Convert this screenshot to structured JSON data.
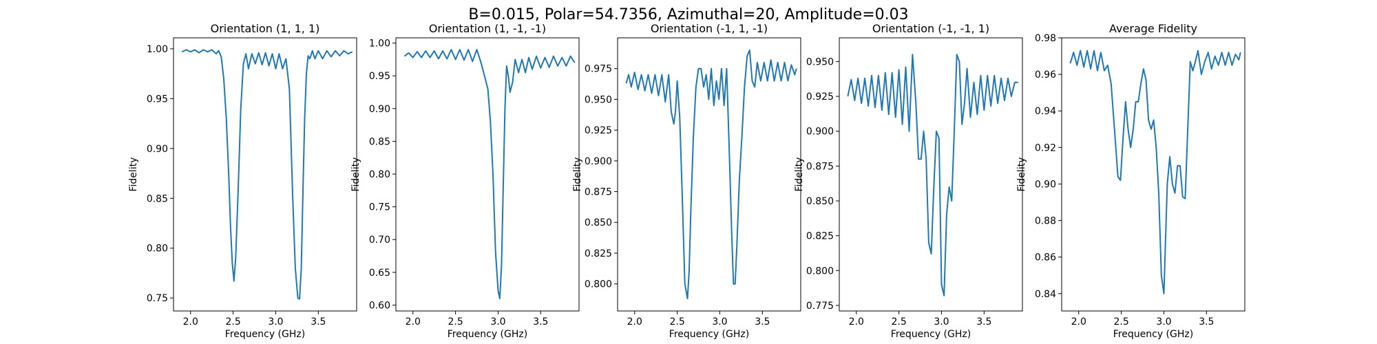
{
  "figure": {
    "suptitle": "B=0.015, Polar=54.7356, Azimuthal=20, Amplitude=0.03"
  },
  "chart_data": [
    {
      "type": "line",
      "title": "Orientation (1, 1, 1)",
      "xlabel": "Frequency (GHz)",
      "ylabel": "Fidelity",
      "xlim": [
        1.8,
        3.95
      ],
      "ylim": [
        0.737,
        1.011
      ],
      "xticks": [
        2.0,
        2.5,
        3.0,
        3.5
      ],
      "xtick_labels": [
        "2.0",
        "2.5",
        "3.0",
        "3.5"
      ],
      "yticks": [
        0.75,
        0.8,
        0.85,
        0.9,
        0.95,
        1.0
      ],
      "ytick_labels": [
        "0.75",
        "0.80",
        "0.85",
        "0.90",
        "0.95",
        "1.00"
      ],
      "color": "#1f77b4",
      "series": [
        {
          "x": [
            1.9,
            1.95,
            2.0,
            2.05,
            2.1,
            2.15,
            2.2,
            2.25,
            2.3,
            2.33,
            2.36,
            2.39,
            2.42,
            2.45,
            2.47,
            2.49,
            2.51,
            2.53,
            2.56,
            2.59,
            2.62,
            2.65,
            2.68,
            2.72,
            2.76,
            2.8,
            2.84,
            2.88,
            2.92,
            2.96,
            3.0,
            3.04,
            3.08,
            3.12,
            3.16,
            3.2,
            3.23,
            3.26,
            3.28,
            3.3,
            3.32,
            3.34,
            3.36,
            3.38,
            3.4,
            3.43,
            3.46,
            3.5,
            3.55,
            3.6,
            3.65,
            3.7,
            3.75,
            3.8,
            3.85,
            3.9
          ],
          "y": [
            0.997,
            0.999,
            0.997,
            0.999,
            0.996,
            0.999,
            0.997,
            0.999,
            0.995,
            0.998,
            0.992,
            0.97,
            0.93,
            0.87,
            0.82,
            0.785,
            0.767,
            0.79,
            0.86,
            0.94,
            0.985,
            0.995,
            0.98,
            0.995,
            0.985,
            0.996,
            0.984,
            0.996,
            0.983,
            0.995,
            0.98,
            0.995,
            0.98,
            0.99,
            0.96,
            0.85,
            0.78,
            0.75,
            0.749,
            0.78,
            0.86,
            0.93,
            0.975,
            0.993,
            0.99,
            0.998,
            0.99,
            0.998,
            0.99,
            0.998,
            0.992,
            0.998,
            0.993,
            0.998,
            0.995,
            0.997
          ]
        }
      ]
    },
    {
      "type": "line",
      "title": "Orientation (1, -1, -1)",
      "xlabel": "Frequency (GHz)",
      "ylabel": "Fidelity",
      "xlim": [
        1.8,
        3.95
      ],
      "ylim": [
        0.591,
        1.008
      ],
      "xticks": [
        2.0,
        2.5,
        3.0,
        3.5
      ],
      "xtick_labels": [
        "2.0",
        "2.5",
        "3.0",
        "3.5"
      ],
      "yticks": [
        0.6,
        0.65,
        0.7,
        0.75,
        0.8,
        0.85,
        0.9,
        0.95,
        1.0
      ],
      "ytick_labels": [
        "0.60",
        "0.65",
        "0.70",
        "0.75",
        "0.80",
        "0.85",
        "0.90",
        "0.95",
        "1.00"
      ],
      "color": "#1f77b4",
      "series": [
        {
          "x": [
            1.9,
            1.95,
            2.0,
            2.05,
            2.1,
            2.15,
            2.2,
            2.25,
            2.3,
            2.35,
            2.4,
            2.45,
            2.5,
            2.55,
            2.6,
            2.65,
            2.7,
            2.75,
            2.8,
            2.84,
            2.88,
            2.91,
            2.94,
            2.97,
            3.0,
            3.02,
            3.04,
            3.06,
            3.08,
            3.1,
            3.12,
            3.14,
            3.17,
            3.2,
            3.24,
            3.28,
            3.32,
            3.36,
            3.4,
            3.45,
            3.5,
            3.55,
            3.6,
            3.65,
            3.7,
            3.75,
            3.8,
            3.85,
            3.9
          ],
          "y": [
            0.98,
            0.985,
            0.978,
            0.987,
            0.978,
            0.988,
            0.978,
            0.988,
            0.976,
            0.988,
            0.976,
            0.99,
            0.975,
            0.99,
            0.974,
            0.99,
            0.972,
            0.99,
            0.97,
            0.95,
            0.93,
            0.88,
            0.8,
            0.68,
            0.622,
            0.61,
            0.66,
            0.78,
            0.9,
            0.965,
            0.95,
            0.925,
            0.94,
            0.975,
            0.955,
            0.975,
            0.955,
            0.978,
            0.96,
            0.98,
            0.962,
            0.978,
            0.963,
            0.98,
            0.965,
            0.978,
            0.965,
            0.98,
            0.97
          ]
        }
      ]
    },
    {
      "type": "line",
      "title": "Orientation (-1, 1, -1)",
      "xlabel": "Frequency (GHz)",
      "ylabel": "Fidelity",
      "xlim": [
        1.8,
        3.95
      ],
      "ylim": [
        0.778,
        1.0
      ],
      "xticks": [
        2.0,
        2.5,
        3.0,
        3.5
      ],
      "xtick_labels": [
        "2.0",
        "2.5",
        "3.0",
        "3.5"
      ],
      "yticks": [
        0.8,
        0.825,
        0.85,
        0.875,
        0.9,
        0.925,
        0.95,
        0.975
      ],
      "ytick_labels": [
        "0.800",
        "0.825",
        "0.850",
        "0.875",
        "0.900",
        "0.925",
        "0.950",
        "0.975"
      ],
      "color": "#1f77b4",
      "series": [
        {
          "x": [
            1.9,
            1.93,
            1.96,
            2.0,
            2.04,
            2.08,
            2.12,
            2.16,
            2.2,
            2.24,
            2.28,
            2.32,
            2.36,
            2.4,
            2.43,
            2.46,
            2.48,
            2.5,
            2.53,
            2.56,
            2.59,
            2.62,
            2.64,
            2.66,
            2.69,
            2.72,
            2.75,
            2.78,
            2.81,
            2.84,
            2.87,
            2.9,
            2.93,
            2.96,
            2.99,
            3.02,
            3.05,
            3.08,
            3.11,
            3.14,
            3.16,
            3.18,
            3.2,
            3.23,
            3.26,
            3.29,
            3.32,
            3.35,
            3.38,
            3.41,
            3.44,
            3.48,
            3.52,
            3.56,
            3.6,
            3.64,
            3.68,
            3.72,
            3.76,
            3.8,
            3.84,
            3.88,
            3.9
          ],
          "y": [
            0.963,
            0.97,
            0.96,
            0.972,
            0.958,
            0.97,
            0.957,
            0.97,
            0.955,
            0.97,
            0.953,
            0.97,
            0.948,
            0.97,
            0.94,
            0.93,
            0.94,
            0.965,
            0.935,
            0.87,
            0.8,
            0.788,
            0.81,
            0.86,
            0.92,
            0.96,
            0.975,
            0.975,
            0.96,
            0.97,
            0.95,
            0.975,
            0.945,
            0.965,
            0.95,
            0.975,
            0.945,
            0.975,
            0.91,
            0.84,
            0.8,
            0.8,
            0.83,
            0.885,
            0.92,
            0.96,
            0.985,
            0.99,
            0.965,
            0.96,
            0.98,
            0.965,
            0.98,
            0.965,
            0.982,
            0.965,
            0.98,
            0.965,
            0.98,
            0.965,
            0.978,
            0.97,
            0.975
          ]
        }
      ]
    },
    {
      "type": "line",
      "title": "Orientation (-1, -1, 1)",
      "xlabel": "Frequency (GHz)",
      "ylabel": "Fidelity",
      "xlim": [
        1.8,
        3.95
      ],
      "ylim": [
        0.771,
        0.967
      ],
      "xticks": [
        2.0,
        2.5,
        3.0,
        3.5
      ],
      "xtick_labels": [
        "2.0",
        "2.5",
        "3.0",
        "3.5"
      ],
      "yticks": [
        0.775,
        0.8,
        0.825,
        0.85,
        0.875,
        0.9,
        0.925,
        0.95
      ],
      "ytick_labels": [
        "0.775",
        "0.800",
        "0.825",
        "0.850",
        "0.875",
        "0.900",
        "0.925",
        "0.950"
      ],
      "color": "#1f77b4",
      "series": [
        {
          "x": [
            1.9,
            1.94,
            1.98,
            2.02,
            2.06,
            2.1,
            2.14,
            2.18,
            2.22,
            2.26,
            2.3,
            2.34,
            2.38,
            2.42,
            2.46,
            2.5,
            2.54,
            2.58,
            2.62,
            2.66,
            2.7,
            2.73,
            2.76,
            2.79,
            2.82,
            2.85,
            2.88,
            2.91,
            2.94,
            2.97,
            3.0,
            3.03,
            3.06,
            3.09,
            3.12,
            3.15,
            3.18,
            3.21,
            3.24,
            3.27,
            3.3,
            3.34,
            3.38,
            3.42,
            3.46,
            3.5,
            3.54,
            3.58,
            3.62,
            3.66,
            3.7,
            3.74,
            3.78,
            3.82,
            3.86,
            3.9
          ],
          "y": [
            0.925,
            0.937,
            0.922,
            0.938,
            0.92,
            0.938,
            0.918,
            0.94,
            0.917,
            0.94,
            0.915,
            0.942,
            0.912,
            0.942,
            0.91,
            0.944,
            0.905,
            0.946,
            0.9,
            0.955,
            0.92,
            0.88,
            0.88,
            0.9,
            0.88,
            0.82,
            0.812,
            0.86,
            0.9,
            0.895,
            0.79,
            0.782,
            0.84,
            0.86,
            0.85,
            0.9,
            0.955,
            0.95,
            0.905,
            0.92,
            0.945,
            0.91,
            0.935,
            0.912,
            0.94,
            0.915,
            0.94,
            0.918,
            0.94,
            0.92,
            0.938,
            0.922,
            0.938,
            0.925,
            0.935,
            0.935
          ]
        }
      ]
    },
    {
      "type": "line",
      "title": "Average Fidelity",
      "xlabel": "Frequency (GHz)",
      "ylabel": "Fidelity",
      "xlim": [
        1.8,
        3.95
      ],
      "ylim": [
        0.8305,
        0.98
      ],
      "xticks": [
        2.0,
        2.5,
        3.0,
        3.5
      ],
      "xtick_labels": [
        "2.0",
        "2.5",
        "3.0",
        "3.5"
      ],
      "yticks": [
        0.84,
        0.86,
        0.88,
        0.9,
        0.92,
        0.94,
        0.96,
        0.98
      ],
      "ytick_labels": [
        "0.84",
        "0.86",
        "0.88",
        "0.90",
        "0.92",
        "0.94",
        "0.96",
        "0.98"
      ],
      "color": "#1f77b4",
      "series": [
        {
          "x": [
            1.9,
            1.94,
            1.98,
            2.02,
            2.06,
            2.1,
            2.14,
            2.18,
            2.22,
            2.26,
            2.3,
            2.34,
            2.38,
            2.42,
            2.46,
            2.49,
            2.52,
            2.55,
            2.58,
            2.61,
            2.64,
            2.67,
            2.7,
            2.73,
            2.76,
            2.79,
            2.82,
            2.85,
            2.88,
            2.91,
            2.94,
            2.97,
            3.0,
            3.02,
            3.04,
            3.07,
            3.1,
            3.13,
            3.16,
            3.19,
            3.22,
            3.25,
            3.28,
            3.31,
            3.34,
            3.37,
            3.4,
            3.44,
            3.48,
            3.52,
            3.56,
            3.6,
            3.64,
            3.68,
            3.72,
            3.76,
            3.8,
            3.84,
            3.88,
            3.9
          ],
          "y": [
            0.966,
            0.972,
            0.965,
            0.973,
            0.964,
            0.973,
            0.963,
            0.973,
            0.962,
            0.972,
            0.962,
            0.965,
            0.955,
            0.93,
            0.904,
            0.902,
            0.925,
            0.945,
            0.93,
            0.92,
            0.93,
            0.945,
            0.945,
            0.955,
            0.963,
            0.957,
            0.935,
            0.93,
            0.935,
            0.92,
            0.895,
            0.85,
            0.84,
            0.87,
            0.9,
            0.915,
            0.9,
            0.895,
            0.91,
            0.91,
            0.893,
            0.892,
            0.93,
            0.967,
            0.962,
            0.967,
            0.973,
            0.96,
            0.967,
            0.972,
            0.963,
            0.97,
            0.965,
            0.972,
            0.965,
            0.972,
            0.965,
            0.971,
            0.968,
            0.972
          ]
        }
      ]
    }
  ]
}
